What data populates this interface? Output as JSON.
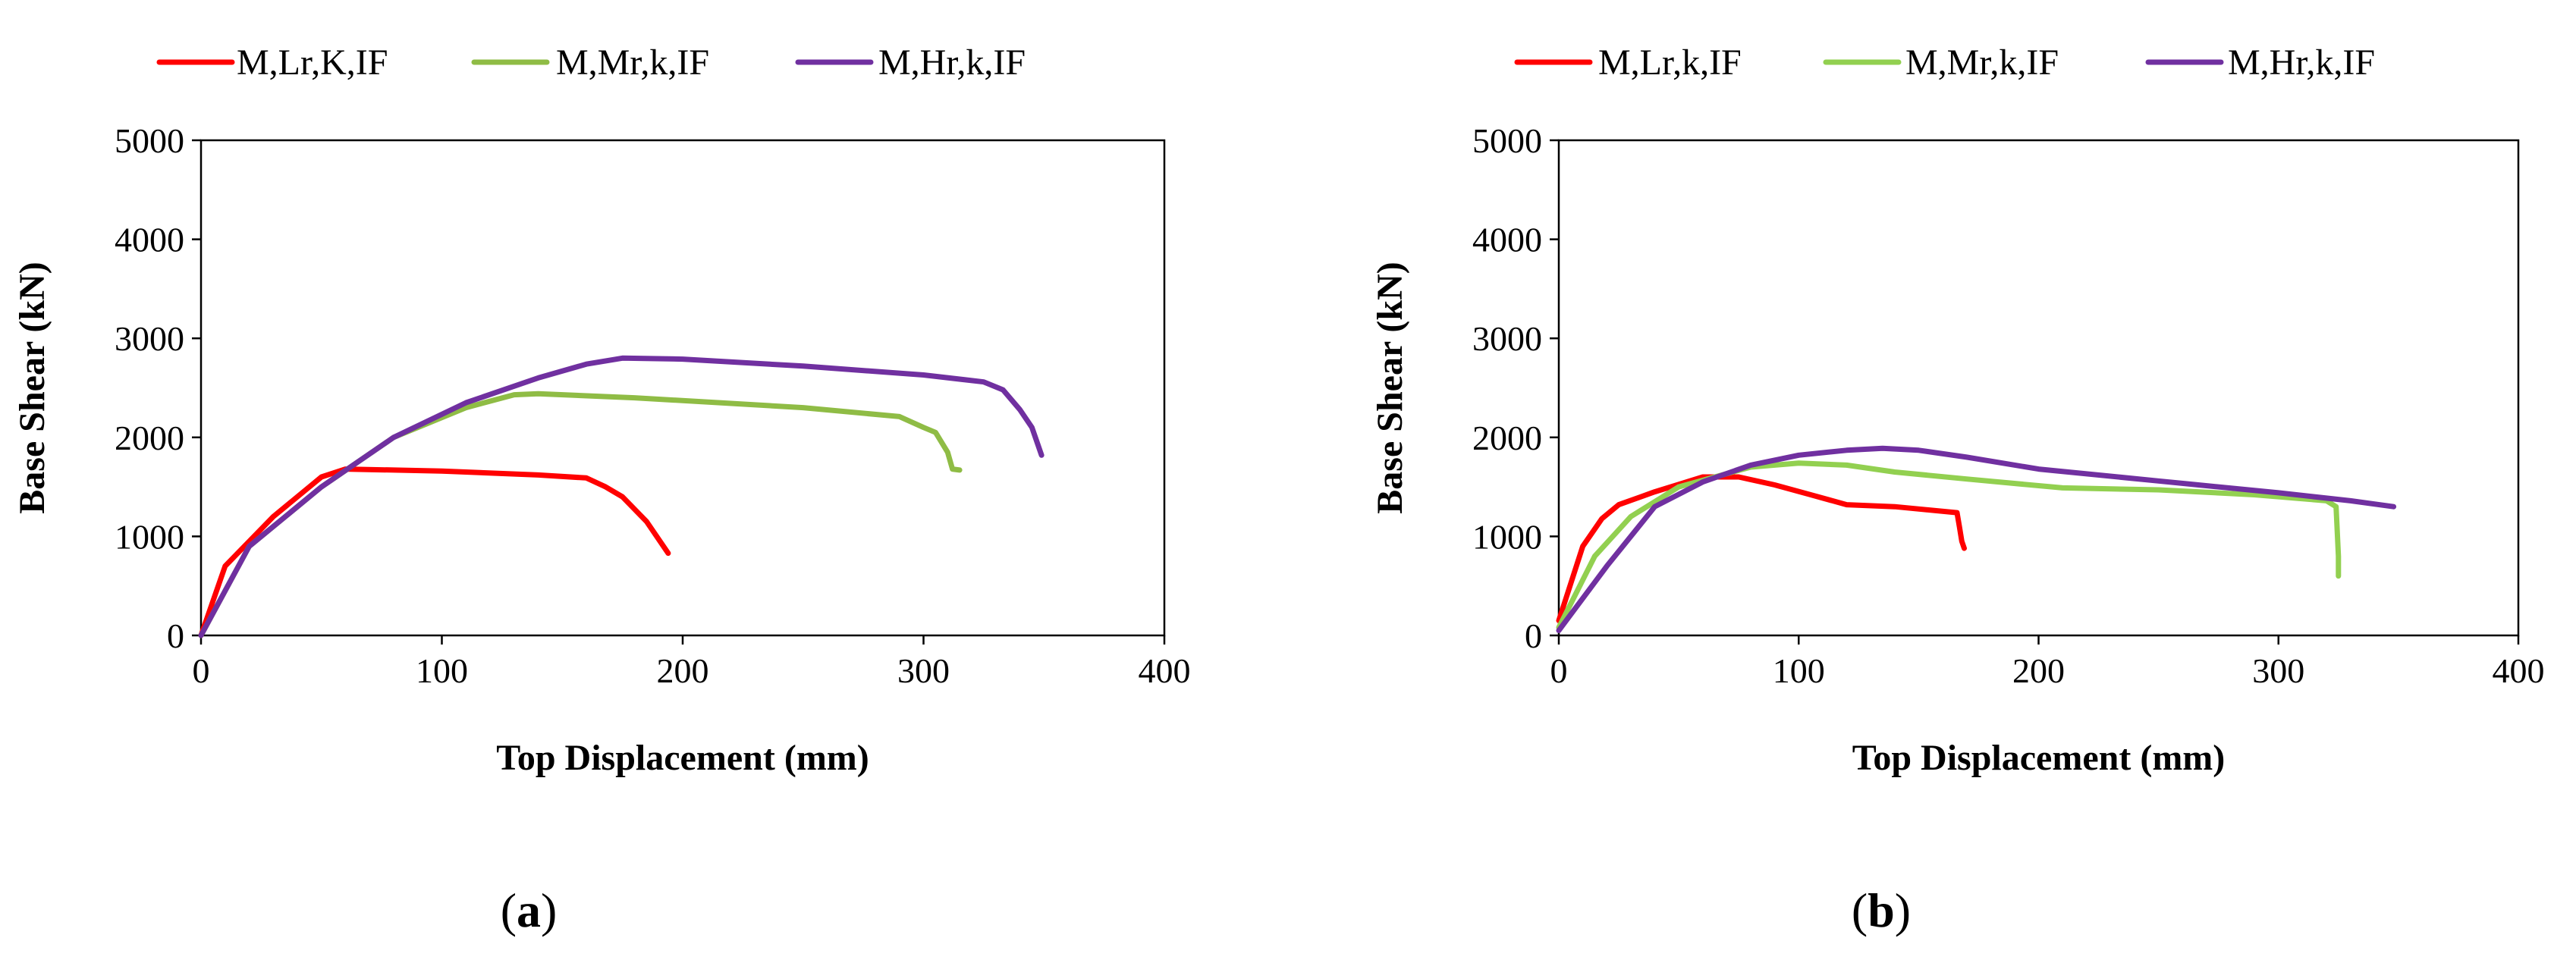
{
  "chart_data": [
    {
      "type": "line",
      "panel_label": "a",
      "xlabel": "Top Displacement (mm)",
      "ylabel": "Base Shear (kN)",
      "xlim": [
        0,
        400
      ],
      "ylim": [
        0,
        5000
      ],
      "xticks": [
        0,
        100,
        200,
        300,
        400
      ],
      "yticks": [
        0,
        1000,
        2000,
        3000,
        4000,
        5000
      ],
      "legend_position": "top",
      "series": [
        {
          "name": "M,Lr,K,IF",
          "color": "#ff0000",
          "x": [
            0,
            10,
            30,
            50,
            60,
            100,
            140,
            160,
            168,
            175,
            185,
            194
          ],
          "y": [
            0,
            700,
            1200,
            1600,
            1680,
            1660,
            1620,
            1590,
            1500,
            1400,
            1150,
            830
          ]
        },
        {
          "name": "M,Mr,k,IF",
          "color": "#8fbc45",
          "x": [
            0,
            20,
            50,
            80,
            110,
            130,
            140,
            180,
            250,
            290,
            300,
            305,
            310,
            312,
            315
          ],
          "y": [
            0,
            900,
            1500,
            2000,
            2300,
            2430,
            2440,
            2400,
            2300,
            2210,
            2100,
            2050,
            1850,
            1680,
            1670
          ]
        },
        {
          "name": "M,Hr,k,IF",
          "color": "#7030a0",
          "x": [
            0,
            20,
            50,
            80,
            110,
            140,
            160,
            175,
            200,
            250,
            300,
            325,
            333,
            340,
            345,
            349
          ],
          "y": [
            0,
            900,
            1500,
            2000,
            2350,
            2600,
            2740,
            2800,
            2790,
            2720,
            2630,
            2560,
            2480,
            2280,
            2100,
            1820
          ]
        }
      ]
    },
    {
      "type": "line",
      "panel_label": "b",
      "xlabel": "Top Displacement (mm)",
      "ylabel": "Base Shear (kN)",
      "xlim": [
        0,
        400
      ],
      "ylim": [
        0,
        5000
      ],
      "xticks": [
        0,
        100,
        200,
        300,
        400
      ],
      "yticks": [
        0,
        1000,
        2000,
        3000,
        4000,
        5000
      ],
      "legend_position": "top",
      "series": [
        {
          "name": "M,Lr,k,IF",
          "color": "#ff0000",
          "x": [
            0,
            10,
            18,
            25,
            40,
            60,
            75,
            90,
            105,
            120,
            140,
            166,
            167,
            168,
            169
          ],
          "y": [
            150,
            900,
            1180,
            1320,
            1450,
            1600,
            1600,
            1520,
            1420,
            1320,
            1300,
            1240,
            1100,
            950,
            880
          ]
        },
        {
          "name": "M,Mr,k,IF",
          "color": "#92d050",
          "x": [
            0,
            15,
            30,
            50,
            80,
            100,
            120,
            140,
            170,
            210,
            250,
            290,
            320,
            324,
            325,
            325
          ],
          "y": [
            80,
            800,
            1200,
            1500,
            1700,
            1740,
            1720,
            1650,
            1580,
            1490,
            1470,
            1420,
            1360,
            1300,
            800,
            600
          ]
        },
        {
          "name": "M,Hr,k,IF",
          "color": "#7030a0",
          "x": [
            0,
            20,
            40,
            60,
            80,
            100,
            120,
            135,
            150,
            170,
            200,
            250,
            300,
            330,
            348
          ],
          "y": [
            50,
            700,
            1300,
            1550,
            1720,
            1820,
            1870,
            1890,
            1870,
            1800,
            1680,
            1560,
            1440,
            1360,
            1300
          ]
        }
      ]
    }
  ]
}
